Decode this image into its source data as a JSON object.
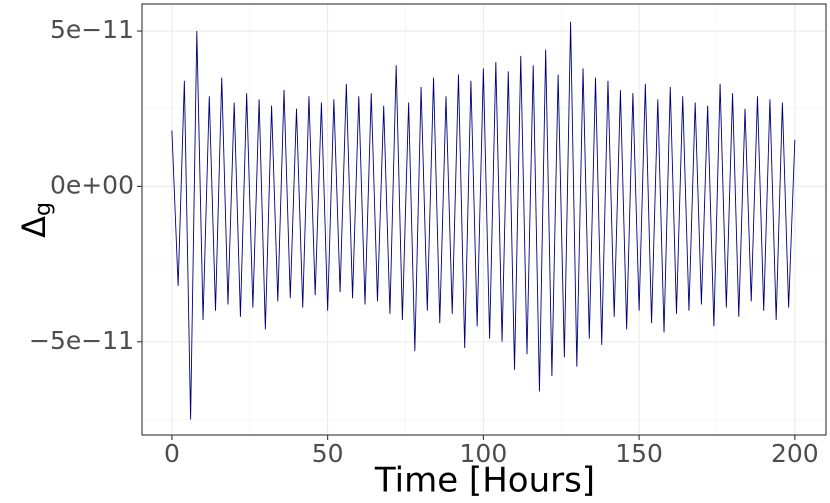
{
  "chart_data": {
    "type": "line",
    "x_label": "Time [Hours]",
    "y_label": "Δ",
    "y_label_sub": "g",
    "x": [
      0,
      2,
      4,
      6,
      8,
      10,
      12,
      14,
      16,
      18,
      20,
      22,
      24,
      26,
      28,
      30,
      32,
      34,
      36,
      38,
      40,
      42,
      44,
      46,
      48,
      50,
      52,
      54,
      56,
      58,
      60,
      62,
      64,
      66,
      68,
      70,
      72,
      74,
      76,
      78,
      80,
      82,
      84,
      86,
      88,
      90,
      92,
      94,
      96,
      98,
      100,
      102,
      104,
      106,
      108,
      110,
      112,
      114,
      116,
      118,
      120,
      122,
      124,
      126,
      128,
      130,
      132,
      134,
      136,
      138,
      140,
      142,
      144,
      146,
      148,
      150,
      152,
      154,
      156,
      158,
      160,
      162,
      164,
      166,
      168,
      170,
      172,
      174,
      176,
      178,
      180,
      182,
      184,
      186,
      188,
      190,
      192,
      194,
      196,
      198,
      200
    ],
    "series": [
      {
        "color": "#00007f",
        "values": [
          1.8e-11,
          -3.2e-11,
          3.4e-11,
          -7.5e-11,
          5e-11,
          -4.3e-11,
          2.9e-11,
          -4e-11,
          3.5e-11,
          -3.8e-11,
          2.7e-11,
          -4.2e-11,
          3e-11,
          -3.9e-11,
          2.8e-11,
          -4.6e-11,
          2.6e-11,
          -3.7e-11,
          3.1e-11,
          -3.6e-11,
          2.5e-11,
          -3.9e-11,
          2.9e-11,
          -3.5e-11,
          2.7e-11,
          -4e-11,
          2.8e-11,
          -3.4e-11,
          3.3e-11,
          -3.6e-11,
          2.9e-11,
          -3.8e-11,
          3e-11,
          -3.7e-11,
          2.6e-11,
          -4.1e-11,
          3.9e-11,
          -4.3e-11,
          2.7e-11,
          -5.3e-11,
          3.2e-11,
          -4e-11,
          3.5e-11,
          -4.4e-11,
          2.9e-11,
          -4.1e-11,
          3.6e-11,
          -5.2e-11,
          3.4e-11,
          -4.5e-11,
          3.8e-11,
          -4.9e-11,
          4e-11,
          -5e-11,
          3.7e-11,
          -5.9e-11,
          4.2e-11,
          -5.4e-11,
          3.9e-11,
          -6.6e-11,
          4.4e-11,
          -6.1e-11,
          3.6e-11,
          -5.5e-11,
          5.3e-11,
          -5.8e-11,
          3.8e-11,
          -4.9e-11,
          3.5e-11,
          -5.1e-11,
          3.4e-11,
          -4.2e-11,
          3.1e-11,
          -4.6e-11,
          3e-11,
          -4e-11,
          3.3e-11,
          -4.4e-11,
          2.8e-11,
          -4.7e-11,
          3.2e-11,
          -4.1e-11,
          2.9e-11,
          -4e-11,
          2.7e-11,
          -3.8e-11,
          2.6e-11,
          -4.5e-11,
          3.3e-11,
          -3.9e-11,
          3e-11,
          -4.2e-11,
          2.5e-11,
          -3.7e-11,
          2.9e-11,
          -4e-11,
          2.8e-11,
          -4.3e-11,
          2.7e-11,
          -3.9e-11,
          1.5e-11
        ]
      }
    ],
    "xlim": [
      -9.6,
      210
    ],
    "ylim": [
      -8e-11,
      5.87e-11
    ],
    "xticks": [
      0,
      50,
      100,
      150,
      200
    ],
    "xminor": [
      25,
      75,
      125,
      175
    ],
    "yticks": [
      {
        "value": -5e-11,
        "label": "−5e−11"
      },
      {
        "value": 0,
        "label": "0e+00"
      },
      {
        "value": 5e-11,
        "label": "5e−11"
      }
    ],
    "yminor": [
      -7.5e-11,
      -2.5e-11,
      2.5e-11
    ],
    "grid": true
  }
}
